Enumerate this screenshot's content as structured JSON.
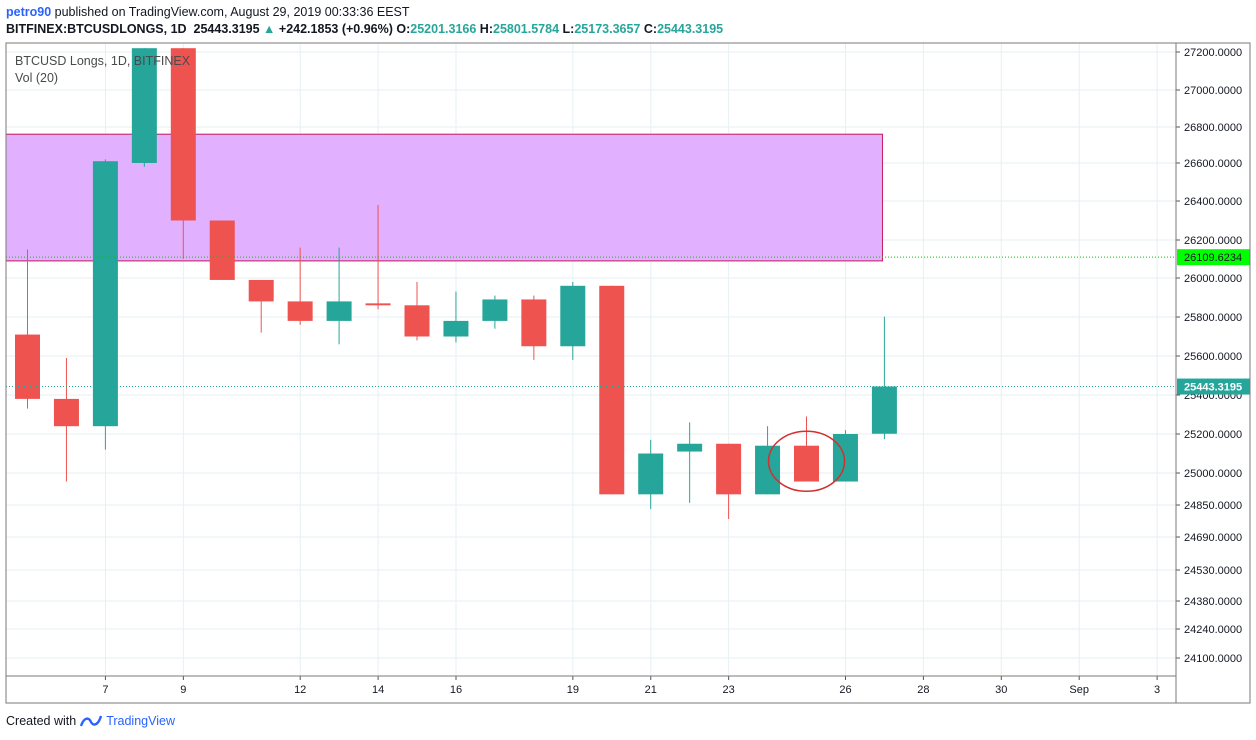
{
  "header": {
    "user": "petro90",
    "published_text": "published on TradingView.com, August 29, 2019 00:33:36 EEST",
    "symbol": "BITFINEX:BTCUSDLONGS, 1D",
    "last": "25443.3195",
    "change": "+242.1853 (+0.96%)",
    "o_label": "O:",
    "o": "25201.3166",
    "h_label": "H:",
    "h": "25801.5784",
    "l_label": "L:",
    "l": "25173.3657",
    "c_label": "C:",
    "c": "25443.3195"
  },
  "legend": {
    "title": "BTCUSD Longs, 1D, BITFINEX",
    "vol": "Vol (20)"
  },
  "footer": {
    "created_with": "Created with",
    "brand": "TradingView"
  },
  "colors": {
    "up": "#26a69a",
    "down": "#ef5350",
    "zone_fill": "#e1b0ff",
    "zone_border": "#c2185b",
    "green_label": "#00ff00",
    "grid": "#e6f0f3",
    "ellipse": "#d32f2f"
  },
  "chart_data": {
    "type": "candlestick",
    "x_ticks": [
      "7",
      "9",
      "12",
      "14",
      "16",
      "19",
      "21",
      "23",
      "26",
      "28",
      "30",
      "Sep",
      "3"
    ],
    "y_ticks": [
      "27200.0000",
      "27000.0000",
      "26800.0000",
      "26600.0000",
      "26400.0000",
      "26200.0000",
      "26000.0000",
      "25800.0000",
      "25600.0000",
      "25400.0000",
      "25200.0000",
      "25000.0000",
      "24850.0000",
      "24690.0000",
      "24530.0000",
      "24380.0000",
      "24240.0000",
      "24100.0000"
    ],
    "price_labels": [
      {
        "value": 26109.6234,
        "text": "26109.6234",
        "style": "green"
      },
      {
        "value": 25443.3195,
        "text": "25443.3195",
        "style": "teal"
      }
    ],
    "zone": {
      "top": 26760,
      "bottom": 26090,
      "from_date": "2019-08-06",
      "to_date": "2019-08-27"
    },
    "highlight_date": "2019-08-26",
    "candles": [
      {
        "d": "2019-08-06",
        "o": 25710,
        "h": 26150,
        "l": 25330,
        "c": 25380
      },
      {
        "d": "2019-08-07",
        "o": 25380,
        "h": 25590,
        "l": 24960,
        "c": 25240
      },
      {
        "d": "2019-08-08",
        "o": 25240,
        "h": 26620,
        "l": 25120,
        "c": 26610
      },
      {
        "d": "2019-08-09",
        "o": 26600,
        "h": 27220,
        "l": 26580,
        "c": 27220
      },
      {
        "d": "2019-08-10",
        "o": 27220,
        "h": 27220,
        "l": 26100,
        "c": 26300
      },
      {
        "d": "2019-08-11",
        "o": 26300,
        "h": 26300,
        "l": 25990,
        "c": 25990
      },
      {
        "d": "2019-08-12",
        "o": 25990,
        "h": 25990,
        "l": 25720,
        "c": 25880
      },
      {
        "d": "2019-08-13",
        "o": 25880,
        "h": 26160,
        "l": 25760,
        "c": 25780
      },
      {
        "d": "2019-08-14",
        "o": 25780,
        "h": 26160,
        "l": 25660,
        "c": 25880
      },
      {
        "d": "2019-08-15",
        "o": 25870,
        "h": 26380,
        "l": 25840,
        "c": 25860
      },
      {
        "d": "2019-08-16",
        "o": 25860,
        "h": 25980,
        "l": 25680,
        "c": 25700
      },
      {
        "d": "2019-08-17",
        "o": 25700,
        "h": 25930,
        "l": 25670,
        "c": 25780
      },
      {
        "d": "2019-08-18",
        "o": 25780,
        "h": 25910,
        "l": 25740,
        "c": 25890
      },
      {
        "d": "2019-08-19",
        "o": 25890,
        "h": 25910,
        "l": 25580,
        "c": 25650
      },
      {
        "d": "2019-08-20",
        "o": 25650,
        "h": 25980,
        "l": 25580,
        "c": 25960
      },
      {
        "d": "2019-08-21",
        "o": 25960,
        "h": 25960,
        "l": 24900,
        "c": 24900
      },
      {
        "d": "2019-08-22",
        "o": 24900,
        "h": 25170,
        "l": 24830,
        "c": 25100
      },
      {
        "d": "2019-08-23",
        "o": 25110,
        "h": 25260,
        "l": 24860,
        "c": 25150
      },
      {
        "d": "2019-08-24",
        "o": 25150,
        "h": 25150,
        "l": 24780,
        "c": 24900
      },
      {
        "d": "2019-08-25",
        "o": 24900,
        "h": 25240,
        "l": 24900,
        "c": 25140
      },
      {
        "d": "2019-08-26",
        "o": 25140,
        "h": 25290,
        "l": 24960,
        "c": 24960
      },
      {
        "d": "2019-08-27",
        "o": 24960,
        "h": 25220,
        "l": 24960,
        "c": 25200
      },
      {
        "d": "2019-08-28",
        "o": 25201.3166,
        "h": 25801.5784,
        "l": 25173.3657,
        "c": 25443.3195
      }
    ]
  }
}
